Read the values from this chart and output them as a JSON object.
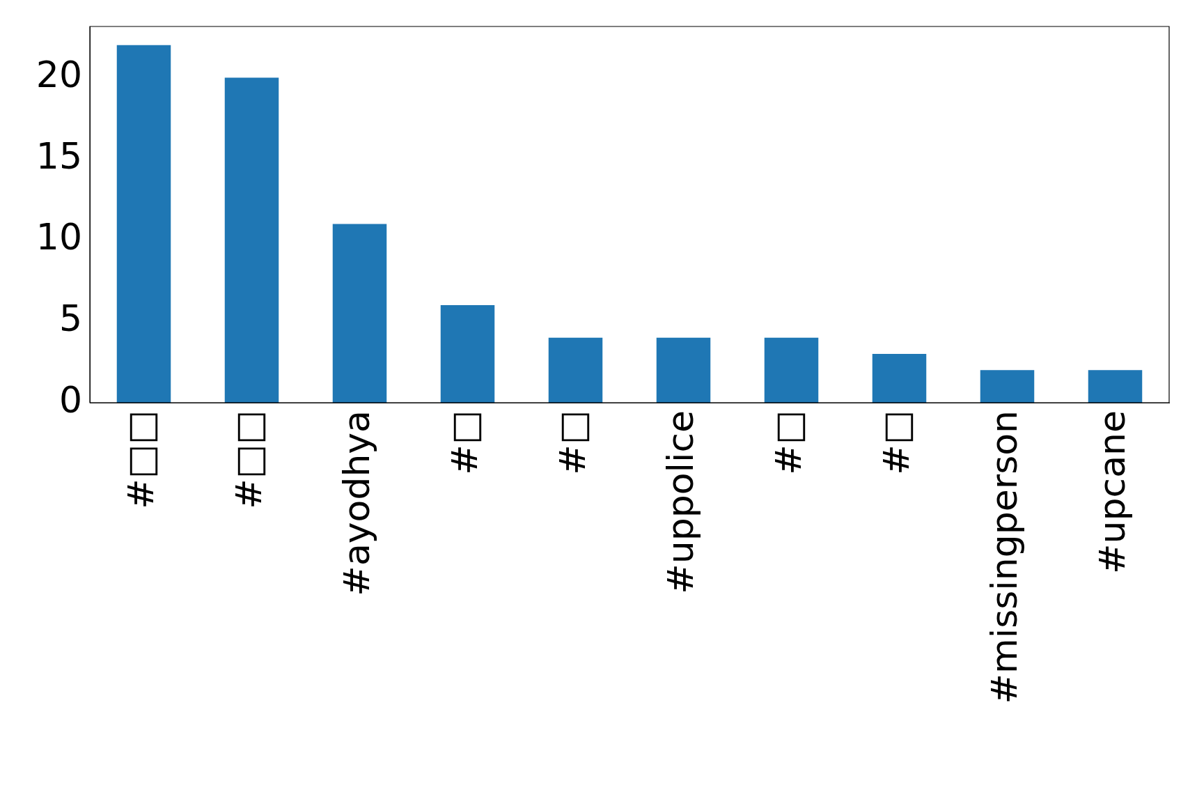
{
  "chart_data": {
    "type": "bar",
    "categories": [
      "#□□",
      "#□□",
      "#ayodhya",
      "#□",
      "#□",
      "#uppolice",
      "#□",
      "#□",
      "#missingperson",
      "#upcane"
    ],
    "values": [
      22,
      20,
      11,
      6,
      4,
      4,
      4,
      3,
      2,
      2
    ],
    "color": "#1f77b4",
    "ylim": [
      0,
      23.15
    ],
    "yticks": [
      0,
      5,
      10,
      15,
      20
    ]
  }
}
